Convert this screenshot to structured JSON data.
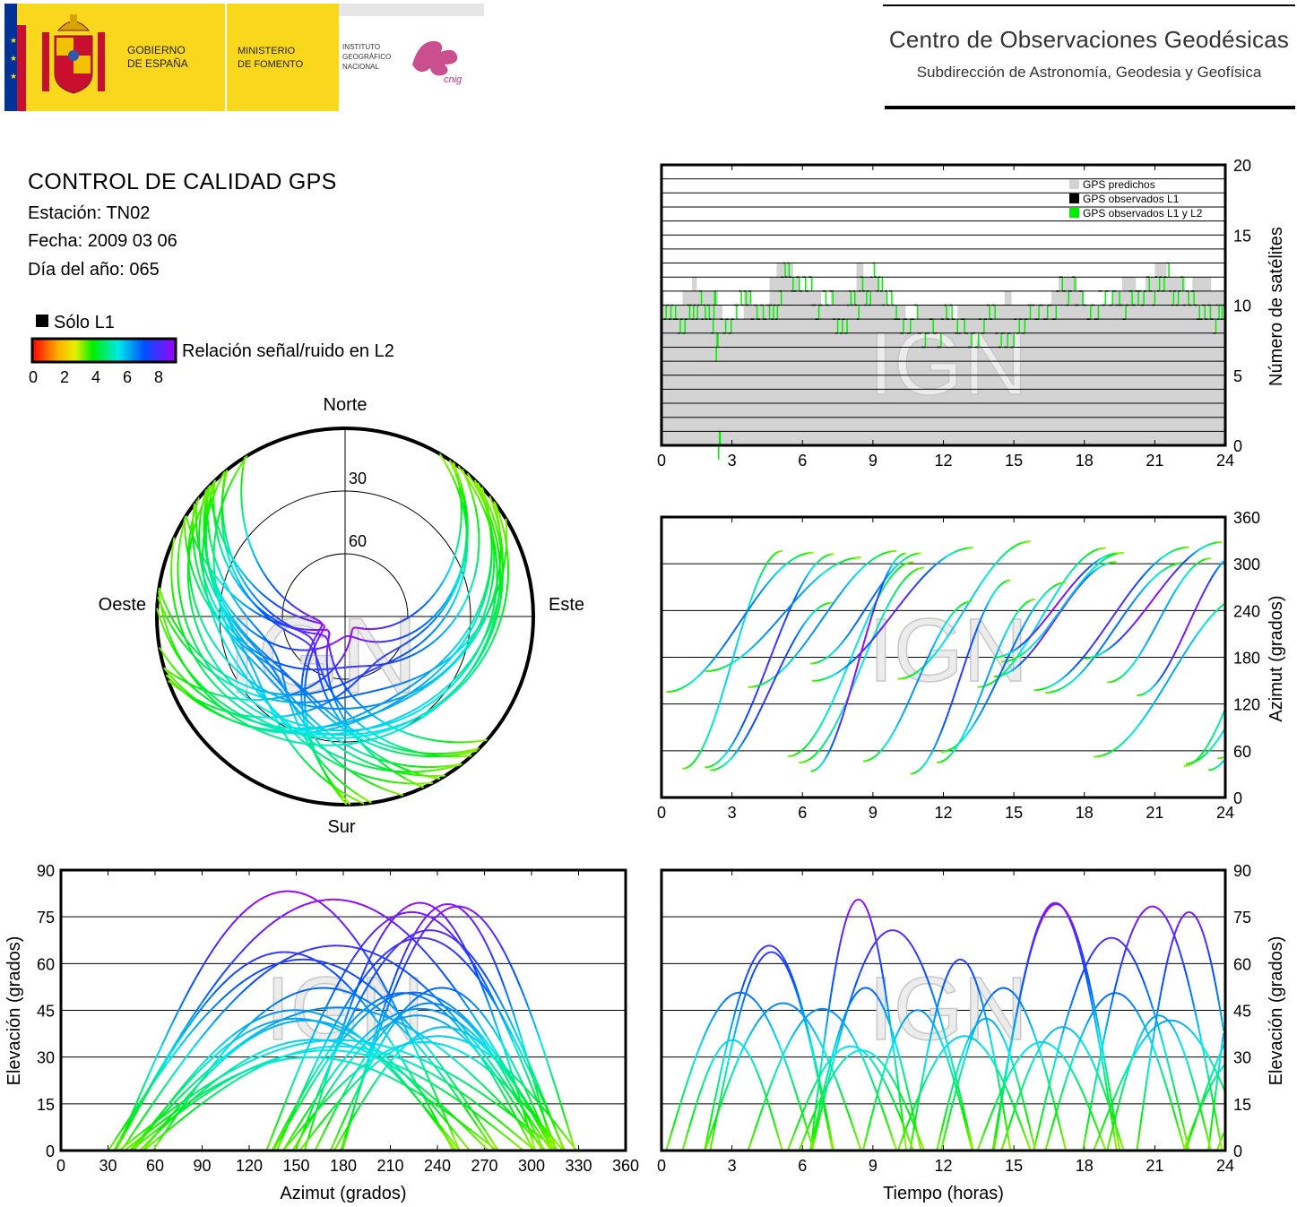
{
  "header": {
    "gov_line1": "GOBIERNO",
    "gov_line2": "DE ESPAÑA",
    "ministry_line1": "MINISTERIO",
    "ministry_line2": "DE FOMENTO",
    "ign_line1": "INSTITUTO",
    "ign_line2": "GEOGRÁFICO",
    "ign_line3": "NACIONAL",
    "cnig_logo_text": "cnig",
    "center_title": "Centro de Observaciones Geodésicas",
    "center_subtitle": "Subdirección de Astronomía, Geodesia y Geofísica",
    "colors": {
      "yellow": "#f9d71c",
      "red": "#c8102e",
      "navy": "#003399",
      "magenta": "#c0307a"
    }
  },
  "info": {
    "title": "CONTROL DE CALIDAD GPS",
    "station": "Estación: TN02",
    "date": "Fecha: 2009 03 06",
    "doy": "Día del año: 065"
  },
  "legend": {
    "l1_only": "Sólo L1",
    "colorbar_label": "Relación señal/ruido en L2",
    "colorbar_ticks": [
      "0",
      "2",
      "4",
      "6",
      "8"
    ],
    "colorbar_range": [
      0,
      8
    ]
  },
  "watermark": "IGN",
  "chart_data": [
    {
      "id": "sky",
      "type": "scatter",
      "projection": "polar",
      "north_label": "Norte",
      "south_label": "Sur",
      "east_label": "Este",
      "west_label": "Oeste",
      "ring_labels": [
        "30",
        "60"
      ],
      "rings_elevation": [
        0,
        30,
        60
      ],
      "description_of_series": "satellite tracks colored by L2 SNR"
    },
    {
      "id": "nsats",
      "type": "area",
      "xlim": [
        0,
        24
      ],
      "ylim": [
        0,
        20
      ],
      "xticks": [
        "0",
        "3",
        "6",
        "9",
        "12",
        "15",
        "18",
        "21",
        "24"
      ],
      "yticks": [
        "0",
        "5",
        "10",
        "15",
        "20"
      ],
      "ylabel": "Número de satélites",
      "legend": [
        "GPS predichos",
        "GPS observados L1",
        "GPS observados L1 y L2"
      ],
      "legend_position": "top-right",
      "series_colors": [
        "#d3d3d3",
        "#000000",
        "#00ee00"
      ],
      "predicted": {
        "x": [
          0,
          0.1,
          0.9,
          1.3,
          1.5,
          2.4,
          2.6,
          3.5,
          3.8,
          4.6,
          4.9,
          5.6,
          5.9,
          6.8,
          7.2,
          8.3,
          8.6,
          9.3,
          9.6,
          10.4,
          10.9,
          12.3,
          12.6,
          14.6,
          14.9,
          16.6,
          16.9,
          17.7,
          18.0,
          19.2,
          19.6,
          20.2,
          20.6,
          21.0,
          21.5,
          22.3,
          22.6,
          23.4,
          24
        ],
        "y": [
          11,
          10,
          11,
          12,
          11,
          10,
          9,
          11,
          10,
          12,
          13,
          12,
          11,
          10,
          11,
          13,
          12,
          11,
          10,
          9,
          10,
          9,
          10,
          11,
          10,
          11,
          12,
          11,
          10,
          11,
          12,
          11,
          12,
          13,
          12,
          11,
          12,
          11,
          10
        ]
      },
      "observed_l1l2": {
        "x": [
          0,
          0.6,
          1.2,
          1.7,
          2.2,
          2.3,
          2.4,
          2.5,
          3.2,
          3.8,
          4.6,
          5.1,
          5.6,
          6.4,
          7.3,
          7.9,
          8.4,
          8.9,
          9.4,
          10.0,
          10.9,
          11.9,
          12.6,
          13.5,
          14.2,
          15.0,
          15.7,
          16.8,
          17.6,
          18.6,
          19.5,
          20.3,
          21.0,
          21.6,
          22.2,
          22.9,
          23.6,
          24
        ],
        "y": [
          10,
          9,
          10,
          9,
          10,
          7,
          0,
          9,
          10,
          9,
          10,
          12,
          11,
          10,
          9,
          10,
          11,
          12,
          10,
          9,
          8,
          9,
          8,
          9,
          8,
          9,
          10,
          11,
          10,
          11,
          10,
          11,
          12,
          11,
          10,
          9,
          10,
          10
        ]
      }
    },
    {
      "id": "azimuth_time",
      "type": "scatter",
      "xlim": [
        0,
        24
      ],
      "ylim": [
        0,
        360
      ],
      "xticks": [
        "0",
        "3",
        "6",
        "9",
        "12",
        "15",
        "18",
        "21",
        "24"
      ],
      "yticks": [
        "0",
        "60",
        "120",
        "180",
        "240",
        "300",
        "360"
      ],
      "ylabel": "Azimut (grados)"
    },
    {
      "id": "elev_azimuth",
      "type": "scatter",
      "xlim": [
        0,
        360
      ],
      "ylim": [
        0,
        90
      ],
      "xticks": [
        "0",
        "30",
        "60",
        "90",
        "120",
        "150",
        "180",
        "210",
        "240",
        "270",
        "300",
        "330",
        "360"
      ],
      "yticks": [
        "0",
        "15",
        "30",
        "45",
        "60",
        "75",
        "90"
      ],
      "xlabel": "Azimut (grados)",
      "ylabel": "Elevación (grados)"
    },
    {
      "id": "elev_time",
      "type": "scatter",
      "xlim": [
        0,
        24
      ],
      "ylim": [
        0,
        90
      ],
      "xticks": [
        "0",
        "3",
        "6",
        "9",
        "12",
        "15",
        "18",
        "21",
        "24"
      ],
      "yticks": [
        "0",
        "15",
        "30",
        "45",
        "60",
        "75",
        "90"
      ],
      "xlabel": "Tiempo (horas)",
      "ylabel": "Elevación (grados)"
    }
  ]
}
